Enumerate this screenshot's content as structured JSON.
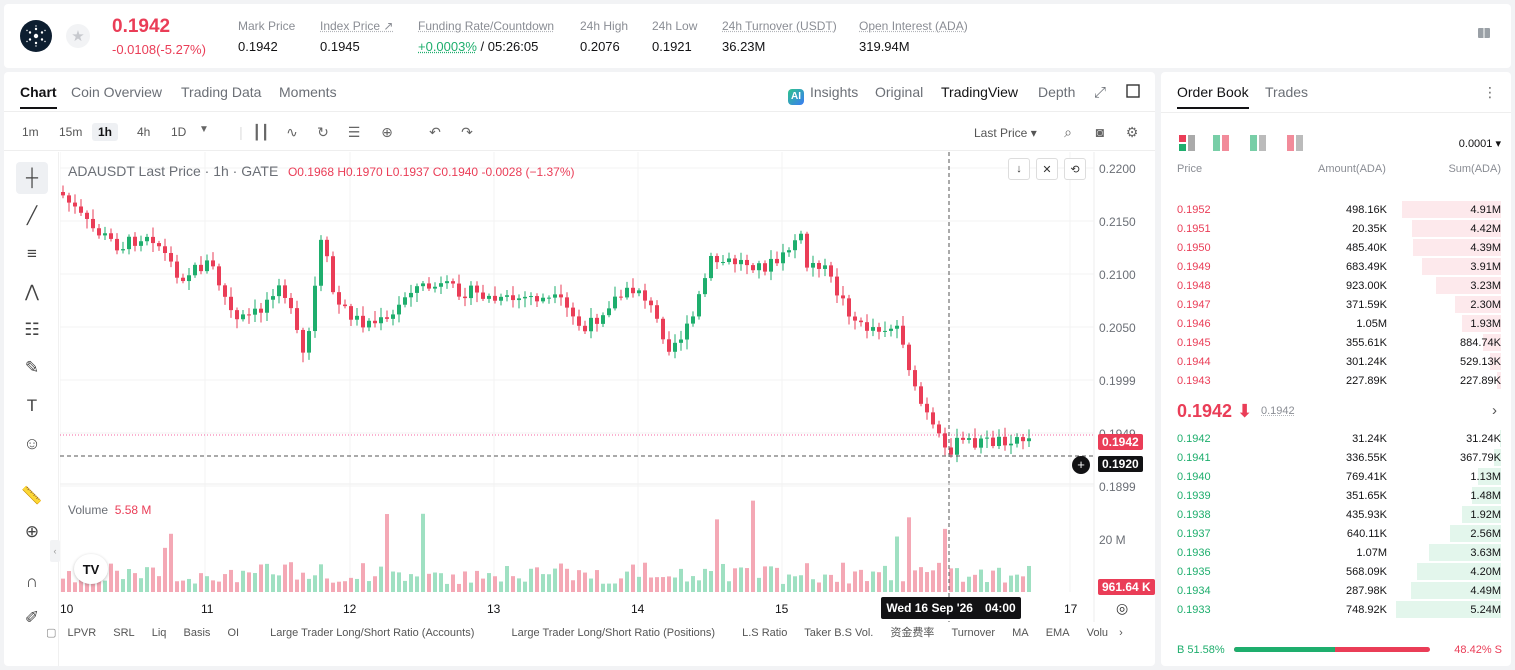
{
  "header": {
    "symbol_icon": "cardano-icon",
    "last_price": "0.1942",
    "change": "-0.0108(-5.27%)",
    "stats": [
      {
        "label": "Mark Price",
        "value": "0.1942"
      },
      {
        "label": "Index Price ↗",
        "value": "0.1945"
      },
      {
        "label": "Funding Rate/Countdown",
        "value_green": "+0.0003%",
        "value": " / 05:26:05"
      },
      {
        "label": "24h High",
        "value": "0.2076"
      },
      {
        "label": "24h Low",
        "value": "0.1921"
      },
      {
        "label": "24h Turnover (USDT)",
        "value": "36.23M"
      },
      {
        "label": "Open Interest (ADA)",
        "value": "319.94M"
      }
    ]
  },
  "chart_tabs": [
    "Chart",
    "Coin Overview",
    "Trading Data",
    "Moments"
  ],
  "view_tabs": {
    "insights": "Insights",
    "original": "Original",
    "tradingview": "TradingView",
    "depth": "Depth",
    "ai_badge": "AI"
  },
  "intervals": [
    "1m",
    "15m",
    "1h",
    "4h",
    "1D"
  ],
  "price_type": "Last Price ▾",
  "legend": {
    "pair": "ADAUSDT Last Price · 1h · GATE",
    "ohlc": "O0.1968  H0.1970  L0.1937  C0.1940  -0.0028 (−1.37%)"
  },
  "volume_legend": {
    "label": "Volume",
    "value": "5.58 M"
  },
  "y_axis": [
    "0.2200",
    "0.2150",
    "0.2100",
    "0.2050",
    "0.1999",
    "0.1949",
    "0.1899"
  ],
  "vol_axis": "20 M",
  "price_tags": {
    "last": "0.1942",
    "cross": "0.1920",
    "volume": "961.64 K"
  },
  "x_axis": [
    "10",
    "11",
    "12",
    "13",
    "14",
    "15",
    "17"
  ],
  "crosshair_date": {
    "date": "Wed 16 Sep '26",
    "time": "04:00"
  },
  "indicators": [
    "LPVR",
    "SRL",
    "Liq",
    "Basis",
    "OI",
    "Large Trader Long/Short Ratio (Accounts)",
    "Large Trader Long/Short Ratio (Positions)",
    "L.S Ratio",
    "Taker B.S Vol.",
    "资金费率",
    "Turnover",
    "MA",
    "EMA",
    "Volu"
  ],
  "orderbook": {
    "tabs": [
      "Order Book",
      "Trades"
    ],
    "precision": "0.0001 ▾",
    "headers": [
      "Price",
      "Amount(ADA)",
      "Sum(ADA)"
    ],
    "asks": [
      {
        "price": "0.1952",
        "amount": "498.16K",
        "sum": "4.91M",
        "depth": 0.94
      },
      {
        "price": "0.1951",
        "amount": "20.35K",
        "sum": "4.42M",
        "depth": 0.85
      },
      {
        "price": "0.1950",
        "amount": "485.40K",
        "sum": "4.39M",
        "depth": 0.84
      },
      {
        "price": "0.1949",
        "amount": "683.49K",
        "sum": "3.91M",
        "depth": 0.75
      },
      {
        "price": "0.1948",
        "amount": "923.00K",
        "sum": "3.23M",
        "depth": 0.62
      },
      {
        "price": "0.1947",
        "amount": "371.59K",
        "sum": "2.30M",
        "depth": 0.44
      },
      {
        "price": "0.1946",
        "amount": "1.05M",
        "sum": "1.93M",
        "depth": 0.37
      },
      {
        "price": "0.1945",
        "amount": "355.61K",
        "sum": "884.74K",
        "depth": 0.17
      },
      {
        "price": "0.1944",
        "amount": "301.24K",
        "sum": "529.13K",
        "depth": 0.1
      },
      {
        "price": "0.1943",
        "amount": "227.89K",
        "sum": "227.89K",
        "depth": 0.04
      }
    ],
    "mid": {
      "price": "0.1942 ⬇",
      "ref": "0.1942"
    },
    "bids": [
      {
        "price": "0.1942",
        "amount": "31.24K",
        "sum": "31.24K",
        "depth": 0.01
      },
      {
        "price": "0.1941",
        "amount": "336.55K",
        "sum": "367.79K",
        "depth": 0.07
      },
      {
        "price": "0.1940",
        "amount": "769.41K",
        "sum": "1.13M",
        "depth": 0.22
      },
      {
        "price": "0.1939",
        "amount": "351.65K",
        "sum": "1.48M",
        "depth": 0.28
      },
      {
        "price": "0.1938",
        "amount": "435.93K",
        "sum": "1.92M",
        "depth": 0.37
      },
      {
        "price": "0.1937",
        "amount": "640.11K",
        "sum": "2.56M",
        "depth": 0.49
      },
      {
        "price": "0.1936",
        "amount": "1.07M",
        "sum": "3.63M",
        "depth": 0.69
      },
      {
        "price": "0.1935",
        "amount": "568.09K",
        "sum": "4.20M",
        "depth": 0.8
      },
      {
        "price": "0.1934",
        "amount": "287.98K",
        "sum": "4.49M",
        "depth": 0.86
      },
      {
        "price": "0.1933",
        "amount": "748.92K",
        "sum": "5.24M",
        "depth": 1.0
      }
    ],
    "buy_ratio": "B 51.58%",
    "sell_ratio": "48.42% S",
    "buy_fraction": 0.5158
  },
  "colors": {
    "up": "#1eae6d",
    "down": "#ea3d57"
  }
}
